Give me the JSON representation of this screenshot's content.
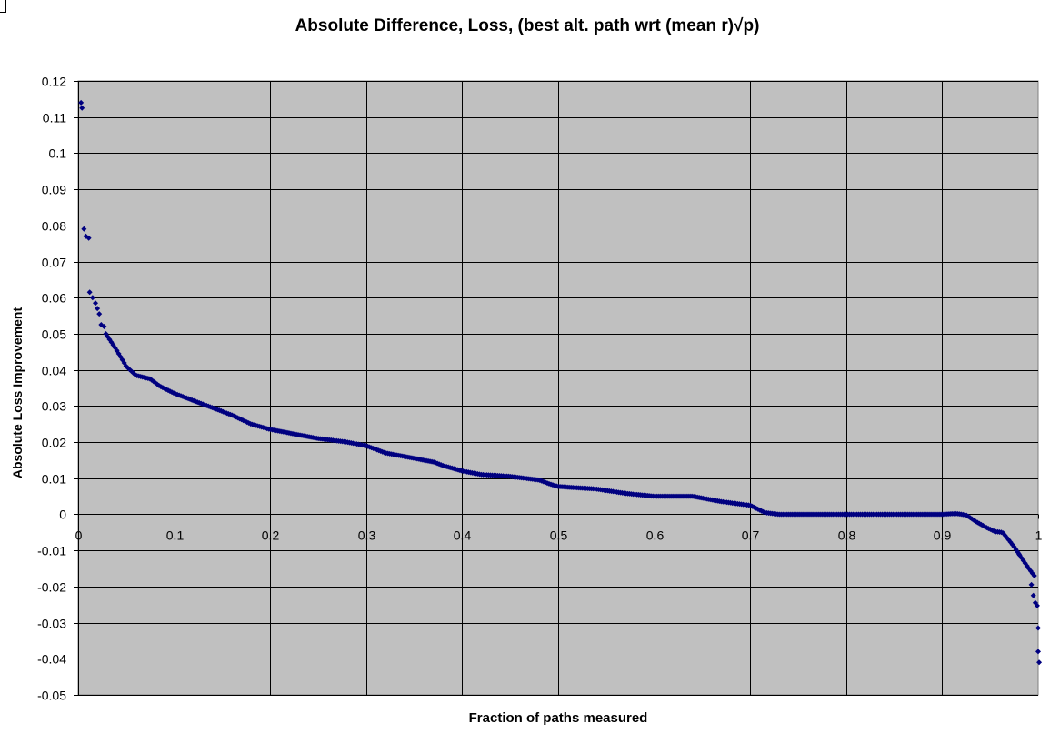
{
  "chart_data": {
    "type": "scatter",
    "title": "Absolute Difference, Loss, (best alt. path wrt (mean r)√p)",
    "xlabel": "Fraction of paths measured",
    "ylabel": "Absolute Loss Improvement",
    "xlim": [
      0,
      1
    ],
    "ylim": [
      -0.05,
      0.12
    ],
    "x_ticks": [
      0,
      0.1,
      0.2,
      0.3,
      0.4,
      0.5,
      0.6,
      0.7,
      0.8,
      0.9,
      1
    ],
    "x_tick_labels": [
      "0",
      "0.1",
      "0.2",
      "0.3",
      "0.4",
      "0.5",
      "0.6",
      "0.7",
      "0.8",
      "0.9",
      "1"
    ],
    "y_ticks": [
      0.12,
      0.11,
      0.1,
      0.09,
      0.08,
      0.07,
      0.06,
      0.05,
      0.04,
      0.03,
      0.02,
      0.01,
      0,
      -0.01,
      -0.02,
      -0.03,
      -0.04,
      -0.05
    ],
    "y_tick_labels": [
      "0.12",
      "0.11",
      "0.1",
      "0.09",
      "0.08",
      "0.07",
      "0.06",
      "0.05",
      "0.04",
      "0.03",
      "0.02",
      "0.01",
      "0",
      "-0.01",
      "-0.02",
      "-0.03",
      "-0.04",
      "-0.05"
    ],
    "grid": true,
    "legend": "none",
    "colors": {
      "plot_background": "#c0c0c0",
      "marker": "#000080",
      "grid": "#000000"
    },
    "series": [
      {
        "marker": "diamond",
        "curve_points": [
          [
            0.006,
            0.0325
          ],
          [
            0.01,
            0.0795
          ],
          [
            0.012,
            0.0775
          ],
          [
            0.015,
            0.0655
          ],
          [
            0.02,
            0.054
          ],
          [
            0.03,
            0.0495
          ],
          [
            0.04,
            0.0455
          ],
          [
            0.05,
            0.041
          ],
          [
            0.06,
            0.0385
          ],
          [
            0.075,
            0.0375
          ],
          [
            0.085,
            0.0355
          ],
          [
            0.1,
            0.0335
          ],
          [
            0.12,
            0.0315
          ],
          [
            0.14,
            0.0295
          ],
          [
            0.16,
            0.0275
          ],
          [
            0.18,
            0.025
          ],
          [
            0.2,
            0.0235
          ],
          [
            0.22,
            0.0225
          ],
          [
            0.25,
            0.021
          ],
          [
            0.28,
            0.02
          ],
          [
            0.3,
            0.019
          ],
          [
            0.32,
            0.017
          ],
          [
            0.35,
            0.0155
          ],
          [
            0.37,
            0.0145
          ],
          [
            0.38,
            0.0135
          ],
          [
            0.4,
            0.012
          ],
          [
            0.42,
            0.011
          ],
          [
            0.45,
            0.0105
          ],
          [
            0.48,
            0.0095
          ],
          [
            0.49,
            0.0085
          ],
          [
            0.5,
            0.0077
          ],
          [
            0.54,
            0.007
          ],
          [
            0.57,
            0.0058
          ],
          [
            0.6,
            0.005
          ],
          [
            0.64,
            0.005
          ],
          [
            0.67,
            0.0035
          ],
          [
            0.7,
            0.0025
          ],
          [
            0.715,
            0.0005
          ],
          [
            0.73,
            0
          ],
          [
            0.9,
            0
          ],
          [
            0.915,
            0.0002
          ],
          [
            0.925,
            -0.0002
          ],
          [
            0.935,
            -0.002
          ],
          [
            0.945,
            -0.0035
          ],
          [
            0.955,
            -0.0048
          ],
          [
            0.963,
            -0.005
          ],
          [
            0.975,
            -0.009
          ],
          [
            0.985,
            -0.013
          ],
          [
            0.993,
            -0.016
          ],
          [
            0.996,
            -0.017
          ]
        ],
        "curve_x_range": [
          0.006,
          0.996
        ],
        "curve_point_count": 520,
        "outliers": [
          [
            0.003,
            0.114
          ],
          [
            0.004,
            0.1125
          ],
          [
            0.006,
            0.079
          ],
          [
            0.008,
            0.077
          ],
          [
            0.011,
            0.0765
          ],
          [
            0.012,
            0.0615
          ],
          [
            0.015,
            0.06
          ],
          [
            0.018,
            0.0585
          ],
          [
            0.02,
            0.057
          ],
          [
            0.022,
            0.0555
          ],
          [
            0.024,
            0.0525
          ],
          [
            0.027,
            0.052
          ],
          [
            0.98,
            -0.011
          ],
          [
            0.993,
            -0.0195
          ],
          [
            0.995,
            -0.0225
          ],
          [
            0.997,
            -0.0245
          ],
          [
            0.999,
            -0.0253
          ],
          [
            1.0,
            -0.0315
          ],
          [
            1.0,
            -0.038
          ],
          [
            1.001,
            -0.041
          ]
        ]
      }
    ]
  }
}
